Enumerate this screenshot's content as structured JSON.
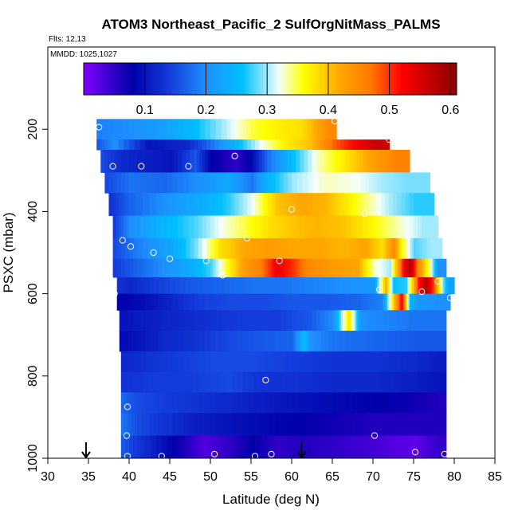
{
  "chart_data": {
    "type": "heatmap",
    "title": "ATOM3 Northeast_Pacific_2 SulfOrgNitMass_PALMS",
    "subtitle_flights": "Flts: 12,13",
    "subtitle_dates": "MMDD: 1025,1027",
    "xlabel": "Latitude (deg N)",
    "ylabel": "PSXC (mbar)",
    "xlim": [
      30,
      85
    ],
    "ylim": [
      1000,
      0
    ],
    "x_ticks": [
      "30",
      "35",
      "40",
      "45",
      "50",
      "55",
      "60",
      "65",
      "70",
      "75",
      "80",
      "85"
    ],
    "y_ticks": [
      "200",
      "400",
      "600",
      "800",
      "1000"
    ],
    "colorbar": {
      "range": [
        0,
        0.61
      ],
      "ticks": [
        "0.1",
        "0.2",
        "0.3",
        "0.4",
        "0.5",
        "0.6"
      ]
    },
    "arrows_latitude": [
      34.7,
      61.2
    ],
    "rows": [
      {
        "p": [
          175,
          225
        ],
        "x": [
          36,
          65.5
        ],
        "segments": [
          [
            36,
            0.19
          ],
          [
            40,
            0.2
          ],
          [
            44,
            0.22
          ],
          [
            48,
            0.26
          ],
          [
            52,
            0.31
          ],
          [
            55,
            0.35
          ],
          [
            58,
            0.37
          ],
          [
            61,
            0.38
          ],
          [
            63,
            0.42
          ],
          [
            64.5,
            0.45
          ]
        ]
      },
      {
        "p": [
          225,
          250
        ],
        "x": [
          36,
          72
        ],
        "segments": [
          [
            36,
            0.16
          ],
          [
            38,
            0.2
          ],
          [
            42,
            0.1
          ],
          [
            47,
            0.12
          ],
          [
            50,
            0.18
          ],
          [
            53,
            0.25
          ],
          [
            56,
            0.32
          ],
          [
            59,
            0.37
          ],
          [
            62,
            0.4
          ],
          [
            65,
            0.48
          ],
          [
            68,
            0.53
          ],
          [
            70,
            0.56
          ]
        ]
      },
      {
        "p": [
          250,
          305
        ],
        "x": [
          36.5,
          74.5
        ],
        "segments": [
          [
            36.5,
            0.15
          ],
          [
            39,
            0.12
          ],
          [
            45,
            0.1
          ],
          [
            48,
            0.16
          ],
          [
            50,
            0.08
          ],
          [
            53,
            0.05
          ],
          [
            55,
            0.09
          ],
          [
            57,
            0.18
          ],
          [
            60,
            0.26
          ],
          [
            63,
            0.33
          ],
          [
            66,
            0.37
          ],
          [
            68,
            0.4
          ],
          [
            70,
            0.43
          ],
          [
            73,
            0.46
          ]
        ]
      },
      {
        "p": [
          305,
          355
        ],
        "x": [
          37,
          77
        ],
        "segments": [
          [
            37,
            0.15
          ],
          [
            40,
            0.18
          ],
          [
            44,
            0.17
          ],
          [
            48,
            0.2
          ],
          [
            52,
            0.23
          ],
          [
            55,
            0.18
          ],
          [
            57,
            0.25
          ],
          [
            60,
            0.3
          ],
          [
            64,
            0.33
          ],
          [
            68,
            0.32
          ],
          [
            71,
            0.3
          ],
          [
            74,
            0.29
          ]
        ]
      },
      {
        "p": [
          355,
          410
        ],
        "x": [
          37.5,
          77.5
        ],
        "segments": [
          [
            37.5,
            0.13
          ],
          [
            40,
            0.17
          ],
          [
            45,
            0.21
          ],
          [
            49,
            0.24
          ],
          [
            52,
            0.27
          ],
          [
            55,
            0.32
          ],
          [
            58,
            0.4
          ],
          [
            61,
            0.42
          ],
          [
            64,
            0.41
          ],
          [
            66,
            0.38
          ],
          [
            69,
            0.34
          ],
          [
            72,
            0.3
          ],
          [
            75,
            0.27
          ]
        ]
      },
      {
        "p": [
          410,
          465
        ],
        "x": [
          38,
          78
        ],
        "segments": [
          [
            38,
            0.14
          ],
          [
            40,
            0.2
          ],
          [
            44,
            0.25
          ],
          [
            48,
            0.28
          ],
          [
            51,
            0.32
          ],
          [
            54,
            0.35
          ],
          [
            57,
            0.38
          ],
          [
            60,
            0.4
          ],
          [
            63,
            0.41
          ],
          [
            66,
            0.4
          ],
          [
            70,
            0.36
          ],
          [
            73,
            0.33
          ],
          [
            76,
            0.3
          ]
        ]
      },
      {
        "p": [
          465,
          515
        ],
        "x": [
          38,
          78.5
        ],
        "segments": [
          [
            38,
            0.15
          ],
          [
            41,
            0.19
          ],
          [
            45,
            0.23
          ],
          [
            48,
            0.29
          ],
          [
            51,
            0.38
          ],
          [
            54,
            0.42
          ],
          [
            57,
            0.43
          ],
          [
            60,
            0.42
          ],
          [
            63,
            0.42
          ],
          [
            66,
            0.41
          ],
          [
            69,
            0.42
          ],
          [
            71,
            0.38
          ],
          [
            72.5,
            0.45
          ],
          [
            73.5,
            0.36
          ],
          [
            75,
            0.28
          ],
          [
            77,
            0.3
          ]
        ]
      },
      {
        "p": [
          515,
          560
        ],
        "x": [
          38,
          79
        ],
        "segments": [
          [
            38,
            0.14
          ],
          [
            41,
            0.17
          ],
          [
            44,
            0.2
          ],
          [
            47,
            0.23
          ],
          [
            50,
            0.28
          ],
          [
            52,
            0.36
          ],
          [
            54,
            0.43
          ],
          [
            56,
            0.46
          ],
          [
            58,
            0.53
          ],
          [
            60,
            0.5
          ],
          [
            62,
            0.45
          ],
          [
            65,
            0.43
          ],
          [
            68,
            0.42
          ],
          [
            70,
            0.33
          ],
          [
            72,
            0.3
          ],
          [
            73.5,
            0.5
          ],
          [
            74.5,
            0.58
          ],
          [
            75.5,
            0.45
          ],
          [
            77,
            0.33
          ],
          [
            78,
            0.2
          ]
        ]
      },
      {
        "p": [
          560,
          600
        ],
        "x": [
          38.5,
          80
        ],
        "segments": [
          [
            38.5,
            0.13
          ],
          [
            40,
            0.12
          ],
          [
            43,
            0.14
          ],
          [
            47,
            0.16
          ],
          [
            51,
            0.17
          ],
          [
            55,
            0.18
          ],
          [
            59,
            0.18
          ],
          [
            62,
            0.19
          ],
          [
            66,
            0.2
          ],
          [
            70,
            0.21
          ],
          [
            71.5,
            0.42
          ],
          [
            72.5,
            0.26
          ],
          [
            74,
            0.27
          ],
          [
            75.5,
            0.51
          ],
          [
            76.5,
            0.58
          ],
          [
            77.5,
            0.48
          ],
          [
            78.5,
            0.3
          ],
          [
            79.3,
            0.22
          ]
        ]
      },
      {
        "p": [
          600,
          640
        ],
        "x": [
          38.5,
          79.5
        ],
        "segments": [
          [
            38.5,
            0.08
          ],
          [
            41,
            0.09
          ],
          [
            44,
            0.11
          ],
          [
            48,
            0.14
          ],
          [
            52,
            0.15
          ],
          [
            56,
            0.15
          ],
          [
            60,
            0.16
          ],
          [
            64,
            0.16
          ],
          [
            68,
            0.17
          ],
          [
            71,
            0.19
          ],
          [
            72.5,
            0.4
          ],
          [
            73.5,
            0.53
          ],
          [
            74.5,
            0.25
          ],
          [
            75.5,
            0.21
          ],
          [
            78,
            0.2
          ]
        ]
      },
      {
        "p": [
          640,
          690
        ],
        "x": [
          38.8,
          79
        ],
        "segments": [
          [
            38.8,
            0.1
          ],
          [
            42,
            0.11
          ],
          [
            46,
            0.12
          ],
          [
            50,
            0.13
          ],
          [
            54,
            0.14
          ],
          [
            58,
            0.14
          ],
          [
            62,
            0.16
          ],
          [
            65,
            0.2
          ],
          [
            66.3,
            0.32
          ],
          [
            67,
            0.38
          ],
          [
            67.7,
            0.3
          ],
          [
            68.5,
            0.2
          ],
          [
            72,
            0.19
          ],
          [
            75,
            0.18
          ]
        ]
      },
      {
        "p": [
          690,
          740
        ],
        "x": [
          38.8,
          79
        ],
        "segments": [
          [
            38.8,
            0.09
          ],
          [
            41,
            0.1
          ],
          [
            44,
            0.12
          ],
          [
            48,
            0.13
          ],
          [
            52,
            0.15
          ],
          [
            56,
            0.16
          ],
          [
            60,
            0.17
          ],
          [
            61.5,
            0.26
          ],
          [
            62.3,
            0.2
          ],
          [
            65,
            0.18
          ],
          [
            70,
            0.17
          ],
          [
            75,
            0.16
          ]
        ]
      },
      {
        "p": [
          740,
          790
        ],
        "x": [
          39,
          79
        ],
        "segments": [
          [
            39,
            0.12
          ],
          [
            42,
            0.13
          ],
          [
            46,
            0.14
          ],
          [
            50,
            0.15
          ],
          [
            55,
            0.15
          ],
          [
            60,
            0.14
          ],
          [
            65,
            0.13
          ],
          [
            70,
            0.13
          ],
          [
            75,
            0.12
          ],
          [
            78,
            0.11
          ]
        ]
      },
      {
        "p": [
          790,
          840
        ],
        "x": [
          39,
          79
        ],
        "segments": [
          [
            39,
            0.13
          ],
          [
            43,
            0.14
          ],
          [
            47,
            0.14
          ],
          [
            52,
            0.15
          ],
          [
            56,
            0.13
          ],
          [
            60,
            0.13
          ],
          [
            65,
            0.12
          ],
          [
            70,
            0.12
          ],
          [
            75,
            0.11
          ],
          [
            78,
            0.1
          ]
        ]
      },
      {
        "p": [
          840,
          890
        ],
        "x": [
          39,
          79
        ],
        "segments": [
          [
            39,
            0.17
          ],
          [
            41,
            0.15
          ],
          [
            44,
            0.14
          ],
          [
            48,
            0.13
          ],
          [
            52,
            0.12
          ],
          [
            56,
            0.11
          ],
          [
            60,
            0.1
          ],
          [
            65,
            0.09
          ],
          [
            70,
            0.08
          ],
          [
            75,
            0.07
          ],
          [
            78,
            0.06
          ]
        ]
      },
      {
        "p": [
          890,
          945
        ],
        "x": [
          39,
          79
        ],
        "segments": [
          [
            39,
            0.18
          ],
          [
            41,
            0.15
          ],
          [
            44,
            0.13
          ],
          [
            48,
            0.11
          ],
          [
            52,
            0.1
          ],
          [
            56,
            0.09
          ],
          [
            60,
            0.08
          ],
          [
            65,
            0.07
          ],
          [
            70,
            0.06
          ],
          [
            75,
            0.06
          ]
        ]
      },
      {
        "p": [
          945,
          1000
        ],
        "x": [
          39,
          79
        ],
        "segments": [
          [
            39,
            0.16
          ],
          [
            42,
            0.12
          ],
          [
            46,
            0.07
          ],
          [
            49,
            0.03
          ],
          [
            52,
            0.05
          ],
          [
            55,
            0.08
          ],
          [
            58,
            0.05
          ],
          [
            61,
            0.06
          ],
          [
            65,
            0.05
          ],
          [
            69,
            0.04
          ],
          [
            72,
            0.03
          ],
          [
            75,
            0.02
          ],
          [
            78,
            0.05
          ]
        ]
      }
    ],
    "points": [
      [
        36.3,
        195
      ],
      [
        38,
        290
      ],
      [
        41.5,
        290
      ],
      [
        47.3,
        290
      ],
      [
        53,
        265
      ],
      [
        65.3,
        180
      ],
      [
        72,
        225
      ],
      [
        60,
        395
      ],
      [
        69,
        405
      ],
      [
        74.5,
        445
      ],
      [
        37.2,
        455
      ],
      [
        39.2,
        470
      ],
      [
        40.2,
        485
      ],
      [
        43,
        500
      ],
      [
        45,
        515
      ],
      [
        49.5,
        520
      ],
      [
        54.5,
        465
      ],
      [
        58.5,
        520
      ],
      [
        51.5,
        555
      ],
      [
        38.2,
        600
      ],
      [
        70.8,
        590
      ],
      [
        76,
        595
      ],
      [
        78,
        570
      ],
      [
        79.5,
        610
      ],
      [
        39.8,
        875
      ],
      [
        56.8,
        810
      ],
      [
        39.7,
        945
      ],
      [
        39.8,
        995
      ],
      [
        44,
        995
      ],
      [
        50.5,
        990
      ],
      [
        55.5,
        995
      ],
      [
        57.5,
        990
      ],
      [
        70.2,
        945
      ],
      [
        75.2,
        985
      ],
      [
        78.8,
        990
      ]
    ]
  }
}
